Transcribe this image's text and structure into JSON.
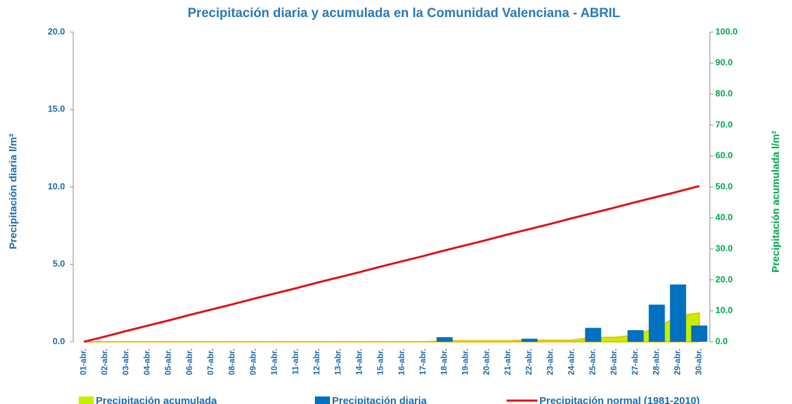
{
  "chart_data": {
    "type": "combo",
    "title": "Precipitación diaria y acumulada en la Comunidad Valenciana - ABRIL",
    "ylabel": "Precipitación diaria l/m²",
    "y2label": "Precipitación acumulada l/m²",
    "categories": [
      "01-abr.",
      "02-abr.",
      "03-abr.",
      "04-abr.",
      "05-abr.",
      "06-abr.",
      "07-abr.",
      "08-abr.",
      "09-abr.",
      "10-abr.",
      "11-abr.",
      "12-abr.",
      "13-abr.",
      "14-abr.",
      "15-abr.",
      "16-abr.",
      "17-abr.",
      "18-abr.",
      "19-abr.",
      "20-abr.",
      "21-abr.",
      "22-abr.",
      "23-abr.",
      "24-abr.",
      "25-abr.",
      "26-abr.",
      "27-abr.",
      "28-abr.",
      "29-abr.",
      "30-abr."
    ],
    "series": [
      {
        "name": "Precipitación acumulada",
        "type": "area",
        "axis": "y2",
        "color": "#c6f000",
        "values": [
          0,
          0,
          0,
          0,
          0,
          0,
          0,
          0,
          0,
          0,
          0,
          0,
          0,
          0,
          0,
          0,
          0,
          0.3,
          0.3,
          0.3,
          0.3,
          0.5,
          0.5,
          0.5,
          1.4,
          1.4,
          2.15,
          4.55,
          8.25,
          9.3
        ]
      },
      {
        "name": "Precipitación diaria",
        "type": "bar",
        "axis": "y",
        "color": "#0070c0",
        "values": [
          0,
          0,
          0,
          0,
          0,
          0,
          0,
          0,
          0,
          0,
          0,
          0,
          0,
          0,
          0,
          0,
          0,
          0.3,
          0,
          0,
          0,
          0.2,
          0,
          0,
          0.9,
          0,
          0.75,
          2.4,
          3.7,
          1.05
        ]
      },
      {
        "name": "Precipitación normal (1981-2010)",
        "type": "line",
        "axis": "y2",
        "color": "#e01010",
        "values": [
          0,
          1.7,
          3.5,
          5.2,
          6.9,
          8.7,
          10.4,
          12.1,
          13.9,
          15.6,
          17.3,
          19.1,
          20.8,
          22.5,
          24.3,
          26.0,
          27.7,
          29.5,
          31.2,
          32.9,
          34.7,
          36.4,
          38.1,
          39.9,
          41.6,
          43.3,
          45.1,
          46.8,
          48.5,
          50.3
        ]
      }
    ],
    "ylim": [
      0,
      20
    ],
    "yticks": [
      {
        "value": 0,
        "label": "0.0"
      },
      {
        "value": 5,
        "label": "5.0"
      },
      {
        "value": 10,
        "label": "10.0"
      },
      {
        "value": 15,
        "label": "15.0"
      },
      {
        "value": 20,
        "label": "20.0"
      }
    ],
    "y2lim": [
      0,
      100
    ],
    "y2ticks": [
      {
        "value": 0,
        "label": "0.0"
      },
      {
        "value": 10,
        "label": "10.0"
      },
      {
        "value": 20,
        "label": "20.0"
      },
      {
        "value": 30,
        "label": "30.0"
      },
      {
        "value": 40,
        "label": "40.0"
      },
      {
        "value": 50,
        "label": "50.0"
      },
      {
        "value": 60,
        "label": "60.0"
      },
      {
        "value": 70,
        "label": "70.0"
      },
      {
        "value": 80,
        "label": "80.0"
      },
      {
        "value": 90,
        "label": "90.0"
      },
      {
        "value": 100,
        "label": "100.0"
      }
    ],
    "legend": "bottom"
  }
}
